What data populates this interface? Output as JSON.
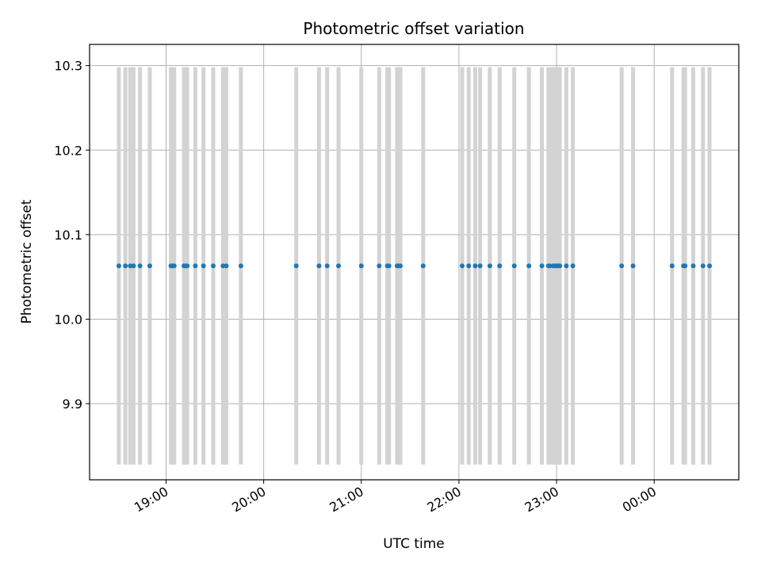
{
  "chart_data": {
    "type": "scatter",
    "title": "Photometric offset variation",
    "xlabel": "UTC time",
    "ylabel": "Photometric offset",
    "xlim": [
      "18:13",
      "00:52"
    ],
    "ylim": [
      9.81,
      10.325
    ],
    "x_ticks": [
      "19:00",
      "20:00",
      "21:00",
      "22:00",
      "23:00",
      "00:00"
    ],
    "y_ticks": [
      "9.9",
      "10.0",
      "10.1",
      "10.2",
      "10.3"
    ],
    "grid": true,
    "bars": {
      "description_color": "#d3d3d3",
      "y_range": [
        9.828,
        10.298
      ]
    },
    "series": [
      {
        "color": "#1f77b4",
        "value": 10.063,
        "x": [
          "18:31",
          "18:35",
          "18:38",
          "18:40",
          "18:44",
          "18:50",
          "19:03",
          "19:04",
          "19:05",
          "19:11",
          "19:12",
          "19:13",
          "19:18",
          "19:23",
          "19:29",
          "19:35",
          "19:37",
          "19:46",
          "20:20",
          "20:34",
          "20:39",
          "20:46",
          "21:00",
          "21:11",
          "21:16",
          "21:17",
          "21:22",
          "21:23",
          "21:24",
          "21:38",
          "22:02",
          "22:06",
          "22:10",
          "22:13",
          "22:19",
          "22:25",
          "22:34",
          "22:43",
          "22:51",
          "22:55",
          "22:56",
          "22:58",
          "22:59",
          "23:00",
          "23:01",
          "23:02",
          "23:06",
          "23:10",
          "23:40",
          "23:47",
          "00:11",
          "00:18",
          "00:19",
          "00:24",
          "00:30",
          "00:34"
        ]
      }
    ]
  }
}
